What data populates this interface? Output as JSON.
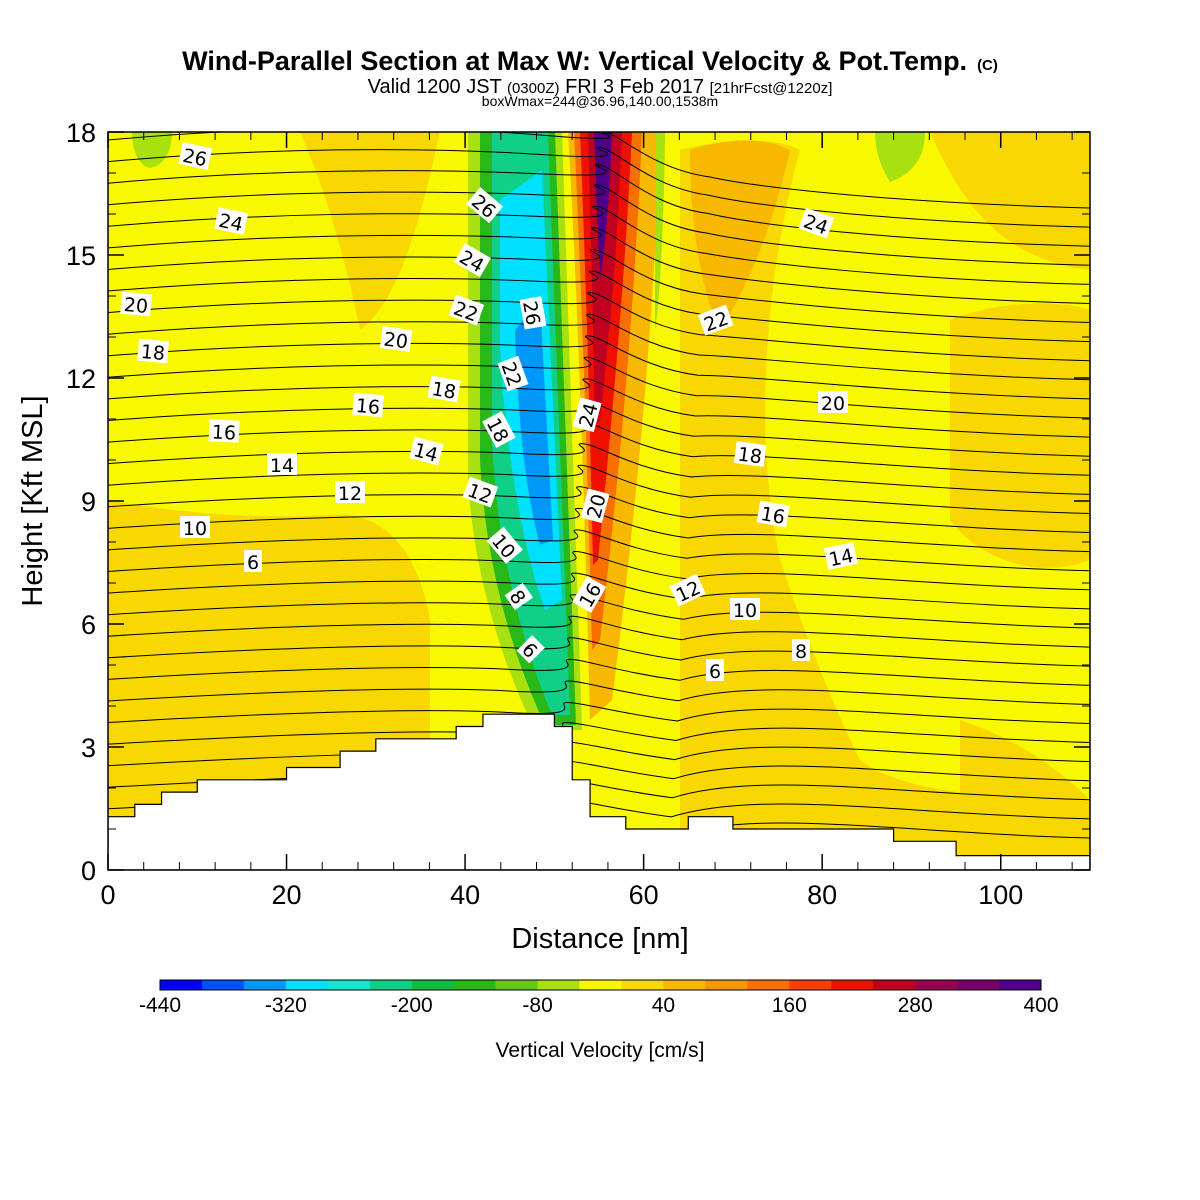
{
  "chart_data": {
    "type": "heatmap",
    "title": "Wind-Parallel Section at Max W: Vertical Velocity & Pot.Temp.",
    "copyright": "(C)",
    "subtitle": "Valid 1200 JST",
    "subtitle_utc": "(0300Z)",
    "subtitle_date": "FRI 3 Feb 2017",
    "subtitle_fcst": "[21hrFcst@1220z]",
    "subtitle2": "boxWmax=244@36.96,140.00,1538m",
    "xlabel": "Distance [nm]",
    "ylabel": "Height [Kft MSL]",
    "xlim": [
      0,
      110
    ],
    "ylim": [
      0,
      18
    ],
    "xticks": [
      "0",
      "20",
      "40",
      "60",
      "80",
      "100"
    ],
    "yticks": [
      "0",
      "3",
      "6",
      "9",
      "12",
      "15",
      "18"
    ],
    "colorbar": {
      "label": "Vertical Velocity [cm/s]",
      "tick_labels": [
        "-440",
        "-320",
        "-200",
        "-80",
        "40",
        "160",
        "280",
        "400"
      ],
      "range": [
        -440,
        400
      ],
      "step": 40,
      "colors": [
        "#0000ff",
        "#0050ff",
        "#0098f8",
        "#00e0ff",
        "#10e8d0",
        "#10d088",
        "#10bc40",
        "#28b818",
        "#68c818",
        "#a8e010",
        "#f8f800",
        "#f8d800",
        "#f8b800",
        "#f89800",
        "#f87000",
        "#f84000",
        "#f01000",
        "#c00020",
        "#980050",
        "#780068",
        "#500088"
      ]
    },
    "theta_contour_labels": [
      "6",
      "8",
      "10",
      "12",
      "14",
      "16",
      "18",
      "20",
      "22",
      "24",
      "26"
    ],
    "vertical_velocity_max": 400,
    "vertical_velocity_min": -320,
    "terrain_profile": {
      "x": [
        0,
        3,
        6,
        10,
        20,
        26,
        30,
        39,
        42,
        50,
        52,
        54,
        58,
        65,
        70,
        80,
        88,
        95,
        110
      ],
      "height": [
        1.3,
        1.6,
        1.9,
        2.2,
        2.5,
        2.9,
        3.2,
        3.5,
        3.8,
        3.5,
        2.2,
        1.3,
        1.0,
        1.3,
        1.0,
        1.0,
        0.7,
        0.35,
        0.35
      ]
    }
  }
}
